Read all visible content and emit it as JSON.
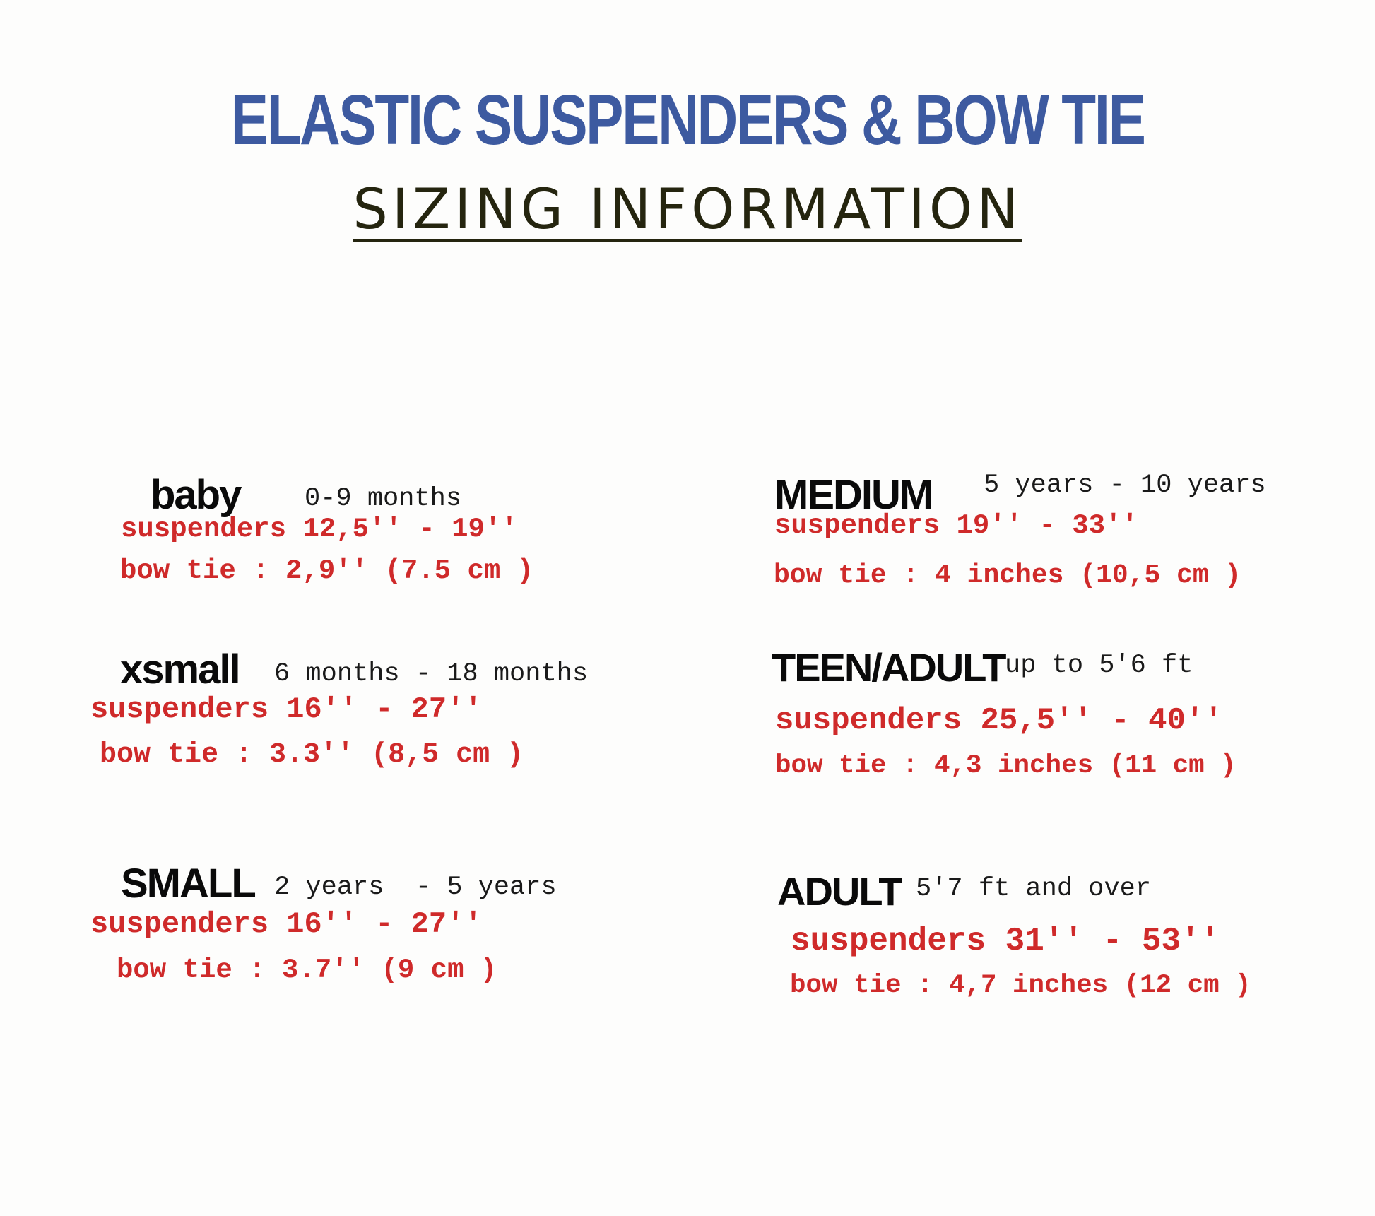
{
  "header": {
    "title": "ELASTIC SUSPENDERS & BOW TIE",
    "subtitle": "SIZING INFORMATION"
  },
  "colors": {
    "title": "#3d5aa0",
    "measurements": "#cf2a2a",
    "text": "#0a0a0a"
  },
  "sizes": [
    {
      "name": "baby",
      "range": "0-9 months",
      "suspenders": "suspenders 12,5'' - 19''",
      "bow_tie": "bow tie : 2,9'' (7.5 cm )"
    },
    {
      "name": "xsmall",
      "range": "6 months - 18 months",
      "suspenders": "suspenders 16'' - 27''",
      "bow_tie": "bow tie : 3.3'' (8,5 cm )"
    },
    {
      "name": "SMALL",
      "range": "2 years  - 5 years",
      "suspenders": "suspenders 16'' - 27''",
      "bow_tie": "bow tie : 3.7'' (9 cm )"
    },
    {
      "name": "MEDIUM",
      "range": "5 years - 10 years",
      "suspenders": "suspenders 19'' - 33''",
      "bow_tie": "bow tie : 4 inches (10,5 cm )"
    },
    {
      "name": "TEEN/ADULT",
      "range": "up to 5'6 ft",
      "suspenders": "suspenders 25,5'' - 40''",
      "bow_tie": "bow tie : 4,3 inches (11 cm )"
    },
    {
      "name": "ADULT",
      "range": "5'7 ft and over",
      "suspenders": "suspenders 31'' - 53''",
      "bow_tie": "bow tie : 4,7 inches (12 cm )"
    }
  ]
}
